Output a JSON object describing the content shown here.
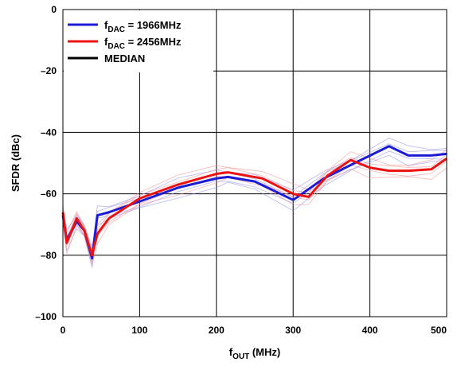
{
  "chart_data": {
    "type": "line",
    "xlabel_main": "f",
    "xlabel_sub": "OUT",
    "xlabel_unit": " (MHz)",
    "ylabel": "SFDR (dBc)",
    "xlim": [
      0,
      500
    ],
    "ylim": [
      -100,
      0
    ],
    "xticks": [
      0,
      100,
      200,
      300,
      400,
      500
    ],
    "yticks": [
      0,
      -20,
      -40,
      -60,
      -80,
      -100
    ],
    "xtick_labels": [
      "0",
      "100",
      "200",
      "300",
      "400",
      "500"
    ],
    "ytick_labels": [
      "0",
      "–20",
      "–40",
      "–60",
      "–80",
      "–100"
    ],
    "grid": true,
    "legend_position": "top-left",
    "series": [
      {
        "name_main": "f",
        "name_sub": "DAC",
        "name_rest": " = 1966MHz",
        "color": "#1c1cd6",
        "x": [
          0,
          5,
          18,
          28,
          38,
          45,
          60,
          100,
          150,
          200,
          215,
          250,
          300,
          340,
          380,
          425,
          450,
          480,
          500
        ],
        "y": [
          -67,
          -75,
          -69,
          -72,
          -81,
          -67,
          -66,
          -62.5,
          -58,
          -55,
          -54.5,
          -56,
          -62,
          -55,
          -50,
          -44.5,
          -47.5,
          -47.5,
          -47
        ]
      },
      {
        "name_main": "f",
        "name_sub": "DAC",
        "name_rest": " = 2456MHz",
        "color": "#ee1111",
        "x": [
          0,
          5,
          18,
          28,
          38,
          45,
          60,
          100,
          150,
          200,
          215,
          260,
          300,
          320,
          345,
          375,
          400,
          425,
          450,
          480,
          500
        ],
        "y": [
          -66,
          -76,
          -68,
          -72,
          -80,
          -73,
          -68,
          -61.5,
          -57,
          -53.5,
          -53,
          -55,
          -60,
          -61,
          -54,
          -49,
          -51.5,
          -52.5,
          -52.5,
          -52,
          -48.5
        ]
      },
      {
        "name_main": "MEDIAN",
        "color": "#000000"
      }
    ]
  }
}
